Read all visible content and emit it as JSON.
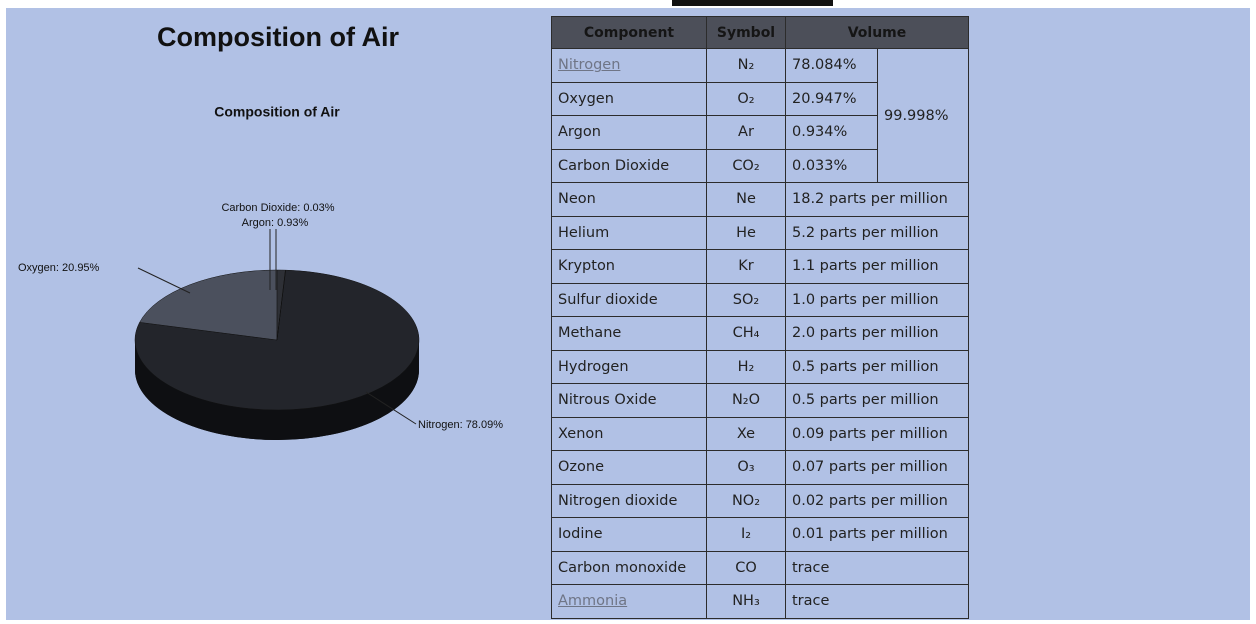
{
  "heading": "Composition of Air",
  "chart_data": {
    "type": "pie",
    "title": "Composition of Air",
    "categories": [
      "Nitrogen",
      "Oxygen",
      "Argon",
      "Carbon Dioxide"
    ],
    "values": [
      78.09,
      20.95,
      0.93,
      0.03
    ],
    "value_labels": [
      "Nitrogen: 78.09%",
      "Oxygen: 20.95%",
      "Argon: 0.93%",
      "Carbon Dioxide: 0.03%"
    ],
    "colors": [
      "#23252b",
      "#4b505d",
      "#2e3036",
      "#3a3d45"
    ]
  },
  "table": {
    "header": [
      "Component",
      "Symbol",
      "Volume"
    ],
    "merged": "99.998%",
    "rows": [
      {
        "component": "Nitrogen",
        "symbol": "N₂",
        "volume": "78.084%",
        "link": true
      },
      {
        "component": "Oxygen",
        "symbol": "O₂",
        "volume": "20.947%"
      },
      {
        "component": "Argon",
        "symbol": "Ar",
        "volume": "0.934%"
      },
      {
        "component": "Carbon Dioxide",
        "symbol": "CO₂",
        "volume": "0.033%"
      },
      {
        "component": "Neon",
        "symbol": "Ne",
        "volume": "18.2 parts per million"
      },
      {
        "component": "Helium",
        "symbol": "He",
        "volume": "5.2 parts per million"
      },
      {
        "component": "Krypton",
        "symbol": "Kr",
        "volume": "1.1 parts per million"
      },
      {
        "component": "Sulfur dioxide",
        "symbol": "SO₂",
        "volume": "1.0 parts per million"
      },
      {
        "component": "Methane",
        "symbol": "CH₄",
        "volume": "2.0 parts per million"
      },
      {
        "component": "Hydrogen",
        "symbol": "H₂",
        "volume": "0.5 parts per million"
      },
      {
        "component": "Nitrous Oxide",
        "symbol": "N₂O",
        "volume": "0.5 parts per million"
      },
      {
        "component": "Xenon",
        "symbol": "Xe",
        "volume": "0.09 parts per million"
      },
      {
        "component": "Ozone",
        "symbol": "O₃",
        "volume": "0.07 parts per million"
      },
      {
        "component": "Nitrogen dioxide",
        "symbol": "NO₂",
        "volume": "0.02 parts per million"
      },
      {
        "component": "Iodine",
        "symbol": "I₂",
        "volume": "0.01 parts per million"
      },
      {
        "component": "Carbon monoxide",
        "symbol": "CO",
        "volume": "trace"
      },
      {
        "component": "Ammonia",
        "symbol": "NH₃",
        "volume": "trace",
        "link": true
      }
    ]
  }
}
